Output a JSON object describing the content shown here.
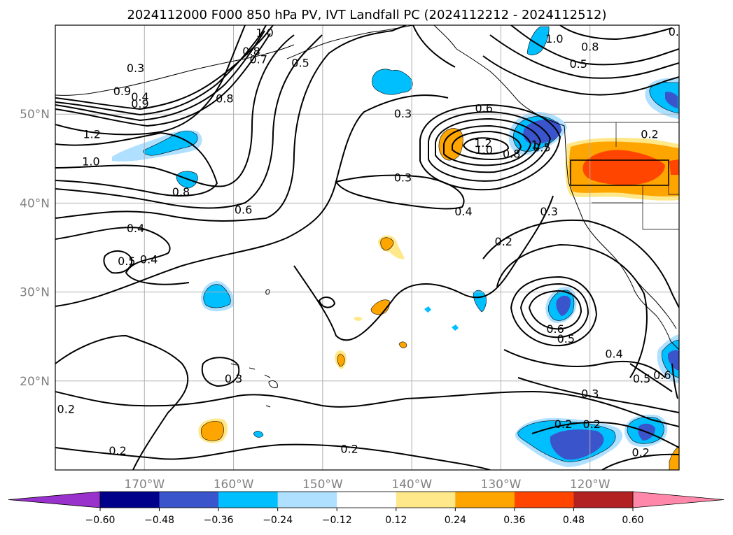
{
  "title": "2024112000 F000 850 hPa PV, IVT Landfall PC (2024112212 - 2024112512)",
  "map": {
    "lon_range": [
      -180,
      -110
    ],
    "lat_range": [
      10,
      60
    ],
    "lat_ticks": [
      {
        "value": 20,
        "label": "20°N"
      },
      {
        "value": 30,
        "label": "30°N"
      },
      {
        "value": 40,
        "label": "40°N"
      },
      {
        "value": 50,
        "label": "50°N"
      }
    ],
    "lon_ticks": [
      {
        "value": -170,
        "label": "170°W"
      },
      {
        "value": -160,
        "label": "160°W"
      },
      {
        "value": -150,
        "label": "150°W"
      },
      {
        "value": -140,
        "label": "140°W"
      },
      {
        "value": -130,
        "label": "130°W"
      },
      {
        "value": -120,
        "label": "120°W"
      }
    ],
    "grid": true
  },
  "contour_labels": [
    {
      "text": "1.0",
      "lon": -156.5,
      "lat": 58.8
    },
    {
      "text": "0.8",
      "lon": -158.0,
      "lat": 56.7
    },
    {
      "text": "0.7",
      "lon": -157.2,
      "lat": 55.8
    },
    {
      "text": "0.5",
      "lon": -152.5,
      "lat": 55.4
    },
    {
      "text": "0.8",
      "lon": -161.0,
      "lat": 51.4
    },
    {
      "text": "0.3",
      "lon": -171.0,
      "lat": 54.8
    },
    {
      "text": "0.4",
      "lon": -170.5,
      "lat": 51.6
    },
    {
      "text": "0.9",
      "lon": -172.5,
      "lat": 52.2
    },
    {
      "text": "0.9",
      "lon": -170.5,
      "lat": 50.8
    },
    {
      "text": "1.2",
      "lon": -175.9,
      "lat": 47.4
    },
    {
      "text": "1.0",
      "lon": -176.0,
      "lat": 44.3
    },
    {
      "text": "0.8",
      "lon": -165.9,
      "lat": 40.9
    },
    {
      "text": "0.6",
      "lon": -158.9,
      "lat": 38.9
    },
    {
      "text": "0.4",
      "lon": -171.0,
      "lat": 36.8
    },
    {
      "text": "0.5",
      "lon": -172.0,
      "lat": 33.1
    },
    {
      "text": "0.4",
      "lon": -169.5,
      "lat": 33.3
    },
    {
      "text": "0.3",
      "lon": -141.0,
      "lat": 49.7
    },
    {
      "text": "0.6",
      "lon": -131.9,
      "lat": 50.3
    },
    {
      "text": "1.2",
      "lon": -132.0,
      "lat": 46.4
    },
    {
      "text": "1.0",
      "lon": -131.9,
      "lat": 45.6
    },
    {
      "text": "0.8",
      "lon": -128.8,
      "lat": 45.2
    },
    {
      "text": "1",
      "lon": -126.2,
      "lat": 46.2
    },
    {
      "text": "0.5",
      "lon": -125.4,
      "lat": 45.9
    },
    {
      "text": "0.3",
      "lon": -141.0,
      "lat": 42.5
    },
    {
      "text": "0.4",
      "lon": -134.2,
      "lat": 38.7
    },
    {
      "text": "0.3",
      "lon": -124.6,
      "lat": 38.7
    },
    {
      "text": "0.2",
      "lon": -129.7,
      "lat": 35.3
    },
    {
      "text": "0.6",
      "lon": -123.9,
      "lat": 25.5
    },
    {
      "text": "0.5",
      "lon": -122.7,
      "lat": 24.4
    },
    {
      "text": "0.4",
      "lon": -117.3,
      "lat": 22.7
    },
    {
      "text": "0.6",
      "lon": -111.9,
      "lat": 20.3
    },
    {
      "text": "0.5",
      "lon": -114.2,
      "lat": 19.9
    },
    {
      "text": "0.3",
      "lon": -160.0,
      "lat": 19.9
    },
    {
      "text": "0.2",
      "lon": -178.8,
      "lat": 16.5
    },
    {
      "text": "0.3",
      "lon": -120.0,
      "lat": 18.2
    },
    {
      "text": "0.2",
      "lon": -123.0,
      "lat": 14.8
    },
    {
      "text": "0.2",
      "lon": -119.8,
      "lat": 14.8
    },
    {
      "text": "0.2",
      "lon": -173.0,
      "lat": 11.8
    },
    {
      "text": "0.2",
      "lon": -147.0,
      "lat": 12.0
    },
    {
      "text": "0.2",
      "lon": -114.3,
      "lat": 11.6
    },
    {
      "text": "0.8",
      "lon": -120.0,
      "lat": 57.2
    },
    {
      "text": "0.5",
      "lon": -121.3,
      "lat": 55.3
    },
    {
      "text": "1.0",
      "lon": -124.0,
      "lat": 58.1
    },
    {
      "text": "0.2",
      "lon": -113.3,
      "lat": 47.4
    },
    {
      "text": "0.",
      "lon": -110.6,
      "lat": 58.9
    }
  ],
  "colorbar": {
    "extend": "both",
    "under_color": "#9932cc",
    "over_color": "#ff88aa",
    "bins": [
      {
        "color": "#00008b"
      },
      {
        "color": "#3a55cc"
      },
      {
        "color": "#00bfff"
      },
      {
        "color": "#b0e0ff"
      },
      {
        "color": "#ffffff"
      },
      {
        "color": "#ffe88a"
      },
      {
        "color": "#ffa500"
      },
      {
        "color": "#ff4500"
      },
      {
        "color": "#b22222"
      }
    ],
    "ticks": [
      {
        "value": -0.6,
        "label": "−0.60"
      },
      {
        "value": -0.48,
        "label": "−0.48"
      },
      {
        "value": -0.36,
        "label": "−0.36"
      },
      {
        "value": -0.24,
        "label": "−0.24"
      },
      {
        "value": -0.12,
        "label": "−0.12"
      },
      {
        "value": 0.12,
        "label": "0.12"
      },
      {
        "value": 0.24,
        "label": "0.24"
      },
      {
        "value": 0.36,
        "label": "0.36"
      },
      {
        "value": 0.48,
        "label": "0.48"
      },
      {
        "value": 0.6,
        "label": "0.60"
      }
    ]
  }
}
